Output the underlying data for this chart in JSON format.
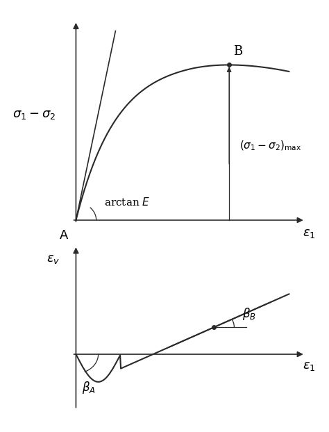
{
  "fig_width": 4.74,
  "fig_height": 6.22,
  "dpi": 100,
  "bg_color": "#ffffff",
  "line_color": "#2a2a2a",
  "top_plot": {
    "xlim": [
      -0.05,
      1.15
    ],
    "ylim": [
      -0.05,
      1.15
    ],
    "origin_label": "A",
    "xlabel": "$\\varepsilon_1$",
    "ylabel": "$\\sigma_1 - \\sigma_2$",
    "tangent_label": "arctan $E$",
    "point_B_label": "B",
    "sigma_max_label": "$(\\sigma_1 - \\sigma_2)_{\\mathrm{max}}$",
    "curve_color": "#2a2a2a",
    "tangent_color": "#2a2a2a",
    "arrow_color": "#2a2a2a",
    "line_color": "#2a2a2a"
  },
  "bottom_plot": {
    "xlim": [
      -0.05,
      1.15
    ],
    "ylim": [
      -0.35,
      0.65
    ],
    "xlabel": "$\\varepsilon_1$",
    "ylabel": "$\\varepsilon_v$",
    "betaA_label": "$\\beta_A$",
    "betaB_label": "$\\beta_B$",
    "curve_color": "#2a2a2a",
    "line_color": "#2a2a2a"
  }
}
